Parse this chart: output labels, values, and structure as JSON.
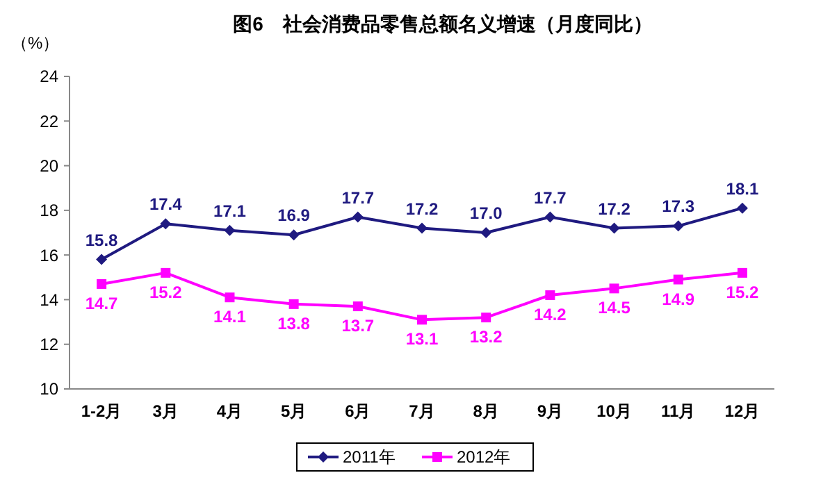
{
  "chart_data": {
    "type": "line",
    "title": "图6　社会消费品零售总额名义增速（月度同比）",
    "ylabel": "（%）",
    "categories": [
      "1-2月",
      "3月",
      "4月",
      "5月",
      "6月",
      "7月",
      "8月",
      "9月",
      "10月",
      "11月",
      "12月"
    ],
    "series": [
      {
        "name": "2011年",
        "color": "#1f1a80",
        "marker": "diamond",
        "values": [
          15.8,
          17.4,
          17.1,
          16.9,
          17.7,
          17.2,
          17.0,
          17.7,
          17.2,
          17.3,
          18.1
        ],
        "value_labels": [
          "15.8",
          "17.4",
          "17.1",
          "16.9",
          "17.7",
          "17.2",
          "17.0",
          "17.7",
          "17.2",
          "17.3",
          "18.1"
        ]
      },
      {
        "name": "2012年",
        "color": "#ff00ff",
        "marker": "square",
        "values": [
          14.7,
          15.2,
          14.1,
          13.8,
          13.7,
          13.1,
          13.2,
          14.2,
          14.5,
          14.9,
          15.2
        ],
        "value_labels": [
          "14.7",
          "15.2",
          "14.1",
          "13.8",
          "13.7",
          "13.1",
          "13.2",
          "14.2",
          "14.5",
          "14.9",
          "15.2"
        ]
      }
    ],
    "ylim": [
      10,
      24
    ],
    "yticks": [
      10,
      12,
      14,
      16,
      18,
      20,
      22,
      24
    ],
    "grid": false,
    "legend": "bottom",
    "line_style": "solid"
  }
}
